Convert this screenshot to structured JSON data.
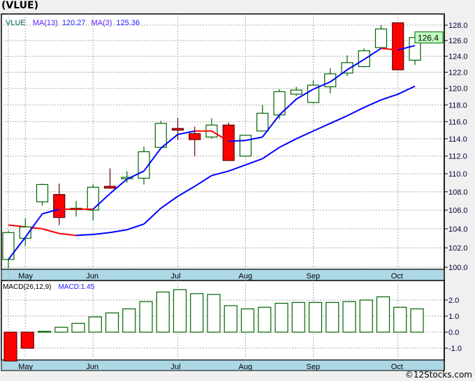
{
  "title": "(VLUE)",
  "footer": "©12Stocks.com",
  "colors": {
    "up": "#006400",
    "down": "#ff0000",
    "ma_up": "#0000ff",
    "ma_down": "#ff0000",
    "axis_band": "#add8e6",
    "price_box": "#c0ffc0"
  },
  "chart_data": [
    {
      "type": "candlestick",
      "title": "VLUE",
      "legend": {
        "symbol": "VLUE",
        "ma13_label": "MA(13)",
        "ma13_value": "120.27",
        "ma3_label": "MA(3)",
        "ma3_value": "125.36"
      },
      "last_price_label": "126.4",
      "yscale": "log",
      "ylim": [
        99.8,
        129.2
      ],
      "yticks": [
        "100.0",
        "102.0",
        "104.0",
        "106.0",
        "108.0",
        "110.0",
        "112.0",
        "114.0",
        "116.0",
        "118.0",
        "120.0",
        "122.0",
        "124.0",
        "126.0",
        "128.0"
      ],
      "xticks": [
        {
          "label": "May",
          "index": 1
        },
        {
          "label": "Jun",
          "index": 5
        },
        {
          "label": "Jul",
          "index": 10
        },
        {
          "label": "Aug",
          "index": 14
        },
        {
          "label": "Sep",
          "index": 18
        },
        {
          "label": "Oct",
          "index": 23
        }
      ],
      "ohlc": [
        [
          100.8,
          103.8,
          99.9,
          103.6
        ],
        [
          103.0,
          105.1,
          102.2,
          104.2
        ],
        [
          106.9,
          108.9,
          106.5,
          108.8
        ],
        [
          107.7,
          108.9,
          104.4,
          105.2
        ],
        [
          106.2,
          107.0,
          105.3,
          106.2
        ],
        [
          106.0,
          108.8,
          104.9,
          108.5
        ],
        [
          108.6,
          110.6,
          108.4,
          108.4
        ],
        [
          109.5,
          110.3,
          109.0,
          109.6
        ],
        [
          109.5,
          113.1,
          108.8,
          112.5
        ],
        [
          113.0,
          116.1,
          112.8,
          115.8
        ],
        [
          115.2,
          116.4,
          113.9,
          115.0
        ],
        [
          114.6,
          115.4,
          112.0,
          113.9
        ],
        [
          114.2,
          116.4,
          114.0,
          115.6
        ],
        [
          115.6,
          115.9,
          111.5,
          111.5
        ],
        [
          112.0,
          114.4,
          112.0,
          114.4
        ],
        [
          114.9,
          118.0,
          114.9,
          117.0
        ],
        [
          116.8,
          119.9,
          116.3,
          119.6
        ],
        [
          119.3,
          120.2,
          119.1,
          119.8
        ],
        [
          118.3,
          121.0,
          118.2,
          120.4
        ],
        [
          120.2,
          122.5,
          119.4,
          121.8
        ],
        [
          121.9,
          124.1,
          121.5,
          123.2
        ],
        [
          122.7,
          125.0,
          122.6,
          124.7
        ],
        [
          125.1,
          128.0,
          125.0,
          127.5
        ],
        [
          128.3,
          128.3,
          122.3,
          122.3
        ],
        [
          123.5,
          126.8,
          122.9,
          126.4
        ]
      ],
      "ma3": [
        100.8,
        103.1,
        105.6,
        106.1,
        106.1,
        106.1,
        107.8,
        109.4,
        110.3,
        112.9,
        114.5,
        114.9,
        114.9,
        113.7,
        113.8,
        114.2,
        116.8,
        118.7,
        119.9,
        120.8,
        122.3,
        123.6,
        125.0,
        124.8,
        125.36
      ],
      "ma13": [
        104.4,
        104.2,
        104.0,
        103.5,
        103.3,
        103.4,
        103.6,
        103.9,
        104.5,
        106.2,
        107.5,
        108.6,
        109.8,
        110.3,
        111.0,
        111.7,
        113.0,
        114.0,
        114.9,
        115.8,
        116.7,
        117.7,
        118.6,
        119.3,
        120.27
      ]
    },
    {
      "type": "bar",
      "title": "MACD(26,12,9)",
      "value_label": "MACD:1.45",
      "ylim": [
        -1.8,
        2.9
      ],
      "yticks": [
        "-1.0",
        "0.0",
        "1.0",
        "2.0"
      ],
      "values": [
        -1.8,
        -1.0,
        0.05,
        0.3,
        0.55,
        0.95,
        1.2,
        1.45,
        1.9,
        2.5,
        2.65,
        2.4,
        2.35,
        1.65,
        1.45,
        1.55,
        1.8,
        1.85,
        1.85,
        1.85,
        1.9,
        2.0,
        2.2,
        1.55,
        1.45
      ]
    }
  ]
}
